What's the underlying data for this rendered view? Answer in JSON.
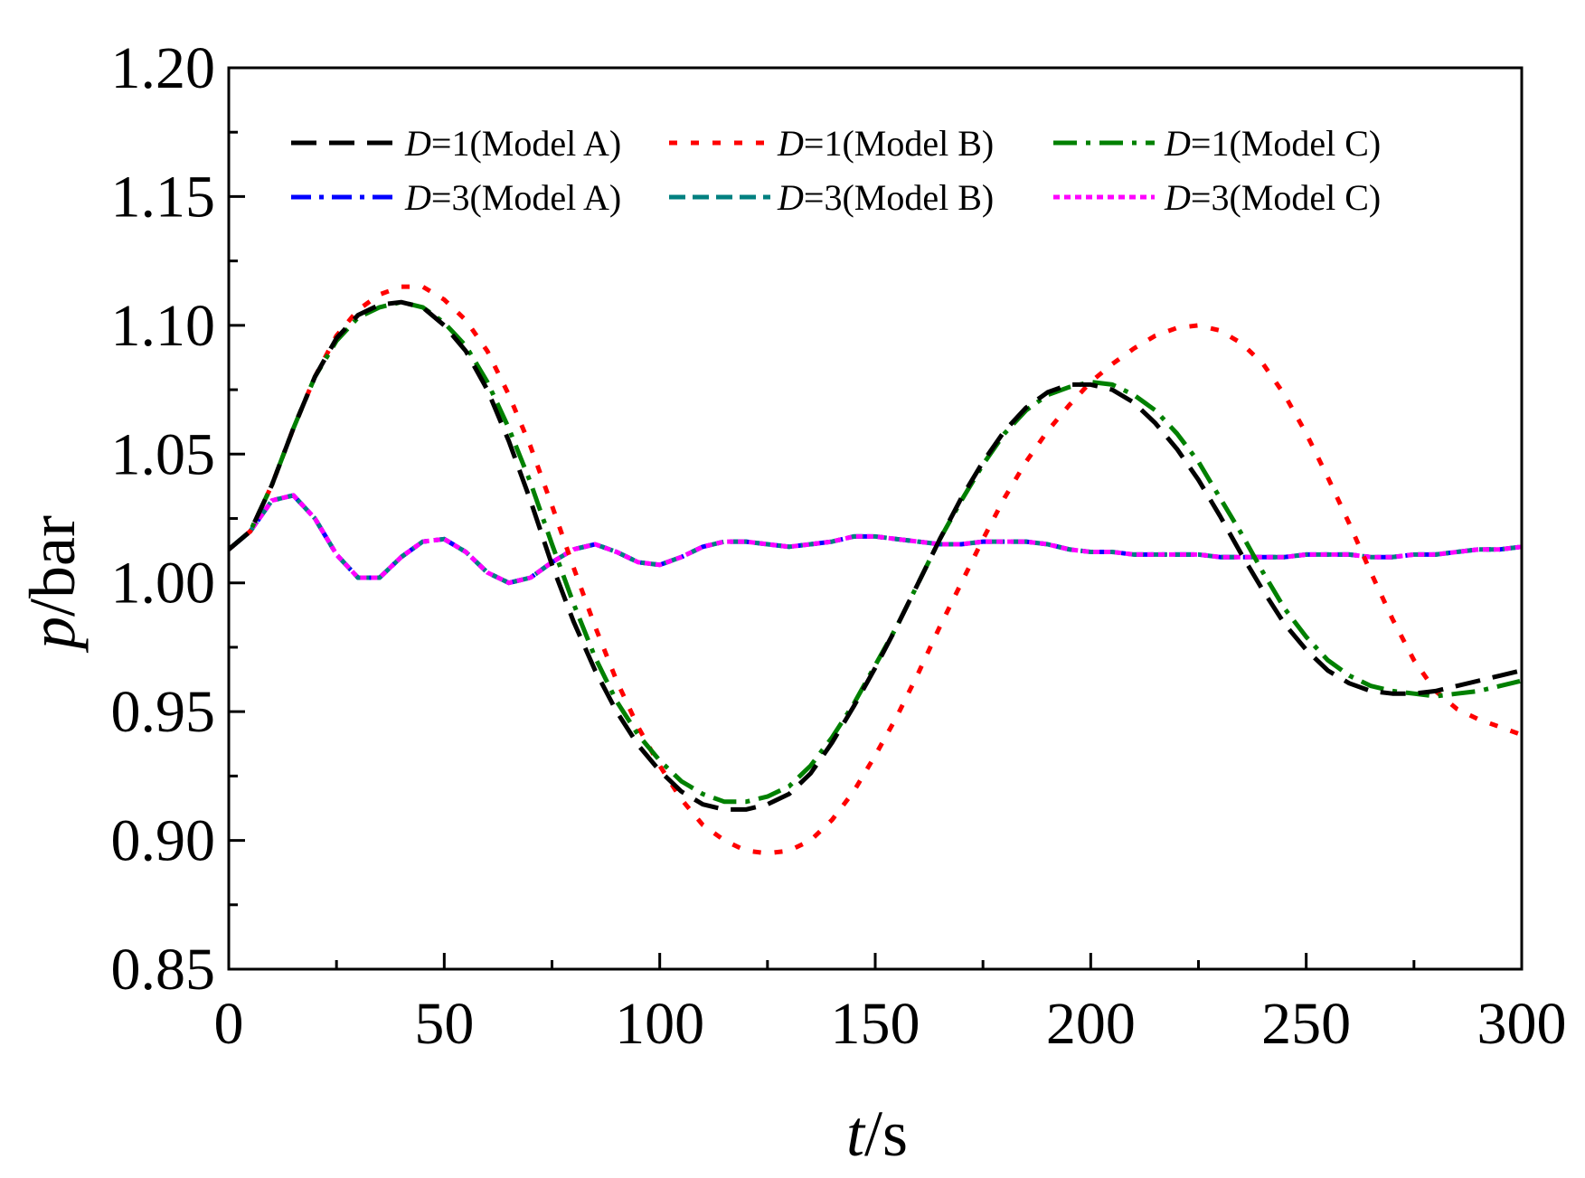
{
  "chart_data": {
    "type": "line",
    "title": "",
    "xlabel": {
      "italic": "t",
      "rest": "/s"
    },
    "ylabel": {
      "italic": "p",
      "rest": "/bar"
    },
    "xlim": [
      0,
      300
    ],
    "ylim": [
      0.85,
      1.2
    ],
    "xticks": [
      0,
      50,
      100,
      150,
      200,
      250,
      300
    ],
    "xtick_labels": [
      "0",
      "50",
      "100",
      "150",
      "200",
      "250",
      "300"
    ],
    "yticks": [
      0.85,
      0.9,
      0.95,
      1.0,
      1.05,
      1.1,
      1.15,
      1.2
    ],
    "ytick_labels": [
      "0.85",
      "0.90",
      "0.95",
      "1.00",
      "1.05",
      "1.10",
      "1.15",
      "1.20"
    ],
    "grid": false,
    "legend_position": "top",
    "series": [
      {
        "name": "D=1(Model A)",
        "label_italic": "D",
        "label_rest": "=1(Model A)",
        "color": "#000000",
        "dash": "28,14",
        "x": [
          0,
          5,
          10,
          15,
          20,
          25,
          30,
          35,
          40,
          45,
          50,
          55,
          60,
          65,
          70,
          75,
          80,
          85,
          90,
          95,
          100,
          105,
          110,
          115,
          120,
          125,
          130,
          135,
          140,
          145,
          150,
          155,
          160,
          165,
          170,
          175,
          180,
          185,
          190,
          195,
          200,
          205,
          210,
          215,
          220,
          225,
          230,
          235,
          240,
          245,
          250,
          255,
          260,
          265,
          270,
          275,
          280,
          285,
          290,
          295,
          300
        ],
        "y": [
          1.013,
          1.02,
          1.038,
          1.06,
          1.08,
          1.095,
          1.104,
          1.108,
          1.109,
          1.107,
          1.1,
          1.09,
          1.075,
          1.055,
          1.032,
          1.007,
          0.985,
          0.966,
          0.95,
          0.937,
          0.927,
          0.919,
          0.914,
          0.912,
          0.912,
          0.914,
          0.918,
          0.926,
          0.938,
          0.952,
          0.967,
          0.983,
          1.0,
          1.017,
          1.033,
          1.047,
          1.059,
          1.068,
          1.074,
          1.077,
          1.077,
          1.075,
          1.07,
          1.062,
          1.052,
          1.04,
          1.026,
          1.011,
          0.997,
          0.984,
          0.974,
          0.966,
          0.961,
          0.958,
          0.957,
          0.957,
          0.958,
          0.96,
          0.962,
          0.964,
          0.966
        ]
      },
      {
        "name": "D=1(Model B)",
        "label_italic": "D",
        "label_rest": "=1(Model B)",
        "color": "#ff0000",
        "dash": "9,15",
        "x": [
          0,
          5,
          10,
          15,
          20,
          25,
          30,
          35,
          40,
          45,
          50,
          55,
          60,
          65,
          70,
          75,
          80,
          85,
          90,
          95,
          100,
          105,
          110,
          115,
          120,
          125,
          130,
          135,
          140,
          145,
          150,
          155,
          160,
          165,
          170,
          175,
          180,
          185,
          190,
          195,
          200,
          205,
          210,
          215,
          220,
          225,
          230,
          235,
          240,
          245,
          250,
          255,
          260,
          265,
          270,
          275,
          280,
          285,
          290,
          295,
          300
        ],
        "y": [
          1.013,
          1.02,
          1.038,
          1.06,
          1.08,
          1.096,
          1.106,
          1.112,
          1.115,
          1.115,
          1.11,
          1.102,
          1.09,
          1.073,
          1.053,
          1.03,
          1.006,
          0.983,
          0.962,
          0.944,
          0.929,
          0.916,
          0.906,
          0.9,
          0.896,
          0.895,
          0.896,
          0.9,
          0.908,
          0.919,
          0.933,
          0.948,
          0.965,
          0.983,
          1.0,
          1.017,
          1.033,
          1.047,
          1.059,
          1.069,
          1.078,
          1.085,
          1.091,
          1.096,
          1.099,
          1.1,
          1.098,
          1.093,
          1.085,
          1.073,
          1.058,
          1.041,
          1.023,
          1.004,
          0.986,
          0.97,
          0.958,
          0.951,
          0.947,
          0.944,
          0.941
        ]
      },
      {
        "name": "D=1(Model C)",
        "label_italic": "D",
        "label_rest": "=1(Model C)",
        "color": "#008000",
        "dash": "26,10,5,10",
        "x": [
          0,
          5,
          10,
          15,
          20,
          25,
          30,
          35,
          40,
          45,
          50,
          55,
          60,
          65,
          70,
          75,
          80,
          85,
          90,
          95,
          100,
          105,
          110,
          115,
          120,
          125,
          130,
          135,
          140,
          145,
          150,
          155,
          160,
          165,
          170,
          175,
          180,
          185,
          190,
          195,
          200,
          205,
          210,
          215,
          220,
          225,
          230,
          235,
          240,
          245,
          250,
          255,
          260,
          265,
          270,
          275,
          280,
          285,
          290,
          295,
          300
        ],
        "y": [
          1.013,
          1.02,
          1.038,
          1.06,
          1.08,
          1.094,
          1.103,
          1.107,
          1.109,
          1.107,
          1.101,
          1.092,
          1.078,
          1.06,
          1.039,
          1.015,
          0.992,
          0.971,
          0.954,
          0.941,
          0.931,
          0.923,
          0.918,
          0.915,
          0.915,
          0.917,
          0.921,
          0.929,
          0.94,
          0.953,
          0.968,
          0.983,
          1.0,
          1.017,
          1.032,
          1.046,
          1.058,
          1.067,
          1.073,
          1.076,
          1.078,
          1.077,
          1.073,
          1.067,
          1.058,
          1.047,
          1.033,
          1.019,
          1.004,
          0.99,
          0.979,
          0.97,
          0.964,
          0.96,
          0.958,
          0.957,
          0.956,
          0.957,
          0.958,
          0.96,
          0.962
        ]
      },
      {
        "name": "D=3(Model A)",
        "label_italic": "D",
        "label_rest": "=3(Model A)",
        "color": "#0000ff",
        "dash": "22,9,5,9",
        "x": [
          0,
          5,
          10,
          15,
          20,
          25,
          30,
          35,
          40,
          45,
          50,
          55,
          60,
          65,
          70,
          75,
          80,
          85,
          90,
          95,
          100,
          105,
          110,
          115,
          120,
          125,
          130,
          135,
          140,
          145,
          150,
          155,
          160,
          165,
          170,
          175,
          180,
          185,
          190,
          195,
          200,
          205,
          210,
          215,
          220,
          225,
          230,
          235,
          240,
          245,
          250,
          255,
          260,
          265,
          270,
          275,
          280,
          285,
          290,
          295,
          300
        ],
        "y": [
          1.013,
          1.02,
          1.032,
          1.034,
          1.025,
          1.011,
          1.002,
          1.002,
          1.01,
          1.016,
          1.017,
          1.012,
          1.004,
          1.0,
          1.002,
          1.008,
          1.013,
          1.015,
          1.012,
          1.008,
          1.007,
          1.01,
          1.014,
          1.016,
          1.016,
          1.015,
          1.014,
          1.015,
          1.016,
          1.018,
          1.018,
          1.017,
          1.016,
          1.015,
          1.015,
          1.016,
          1.016,
          1.016,
          1.015,
          1.013,
          1.012,
          1.012,
          1.011,
          1.011,
          1.011,
          1.011,
          1.01,
          1.01,
          1.01,
          1.01,
          1.011,
          1.011,
          1.011,
          1.01,
          1.01,
          1.011,
          1.011,
          1.012,
          1.013,
          1.013,
          1.014
        ]
      },
      {
        "name": "D=3(Model B)",
        "label_italic": "D",
        "label_rest": "=3(Model B)",
        "color": "#008080",
        "dash": "18,8",
        "x": [
          0,
          5,
          10,
          15,
          20,
          25,
          30,
          35,
          40,
          45,
          50,
          55,
          60,
          65,
          70,
          75,
          80,
          85,
          90,
          95,
          100,
          105,
          110,
          115,
          120,
          125,
          130,
          135,
          140,
          145,
          150,
          155,
          160,
          165,
          170,
          175,
          180,
          185,
          190,
          195,
          200,
          205,
          210,
          215,
          220,
          225,
          230,
          235,
          240,
          245,
          250,
          255,
          260,
          265,
          270,
          275,
          280,
          285,
          290,
          295,
          300
        ],
        "y": [
          1.013,
          1.02,
          1.032,
          1.034,
          1.025,
          1.011,
          1.002,
          1.002,
          1.01,
          1.016,
          1.017,
          1.012,
          1.004,
          1.0,
          1.002,
          1.008,
          1.013,
          1.015,
          1.012,
          1.008,
          1.007,
          1.01,
          1.014,
          1.016,
          1.016,
          1.015,
          1.014,
          1.015,
          1.016,
          1.018,
          1.018,
          1.017,
          1.016,
          1.015,
          1.015,
          1.016,
          1.016,
          1.016,
          1.015,
          1.013,
          1.012,
          1.012,
          1.011,
          1.011,
          1.011,
          1.011,
          1.01,
          1.01,
          1.01,
          1.01,
          1.011,
          1.011,
          1.011,
          1.01,
          1.01,
          1.011,
          1.011,
          1.012,
          1.013,
          1.013,
          1.014
        ]
      },
      {
        "name": "D=3(Model C)",
        "label_italic": "D",
        "label_rest": "=3(Model C)",
        "color": "#ff00ff",
        "dash": "7,5",
        "x": [
          0,
          5,
          10,
          15,
          20,
          25,
          30,
          35,
          40,
          45,
          50,
          55,
          60,
          65,
          70,
          75,
          80,
          85,
          90,
          95,
          100,
          105,
          110,
          115,
          120,
          125,
          130,
          135,
          140,
          145,
          150,
          155,
          160,
          165,
          170,
          175,
          180,
          185,
          190,
          195,
          200,
          205,
          210,
          215,
          220,
          225,
          230,
          235,
          240,
          245,
          250,
          255,
          260,
          265,
          270,
          275,
          280,
          285,
          290,
          295,
          300
        ],
        "y": [
          1.013,
          1.02,
          1.032,
          1.034,
          1.025,
          1.011,
          1.002,
          1.002,
          1.01,
          1.016,
          1.017,
          1.012,
          1.004,
          1.0,
          1.002,
          1.008,
          1.013,
          1.015,
          1.012,
          1.008,
          1.007,
          1.01,
          1.014,
          1.016,
          1.016,
          1.015,
          1.014,
          1.015,
          1.016,
          1.018,
          1.018,
          1.017,
          1.016,
          1.015,
          1.015,
          1.016,
          1.016,
          1.016,
          1.015,
          1.013,
          1.012,
          1.012,
          1.011,
          1.011,
          1.011,
          1.011,
          1.01,
          1.01,
          1.01,
          1.01,
          1.011,
          1.011,
          1.011,
          1.01,
          1.01,
          1.011,
          1.011,
          1.012,
          1.013,
          1.013,
          1.014
        ]
      }
    ]
  }
}
